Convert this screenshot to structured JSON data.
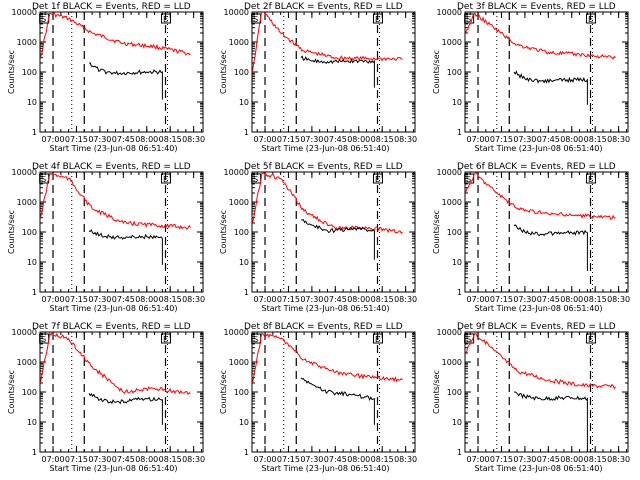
{
  "chart_data": [
    {
      "type": "line",
      "title": "Det 1f BLACK = Events, RED = LLD",
      "xlabel": "Start Time (23-Jun-08 06:51:40)",
      "ylabel": "Counts/sec",
      "yscale": "log",
      "ylim": [
        1,
        10000
      ],
      "xticks": [
        "07:00",
        "07:15",
        "07:30",
        "07:45",
        "08:00",
        "08:15",
        "08:30"
      ],
      "yticks": [
        "1",
        "10",
        "100",
        "1000",
        "10000"
      ],
      "markers": [
        "07:00",
        "07:20",
        "08:12"
      ],
      "markers_dotted": [
        "07:12"
      ],
      "box_label": "S",
      "box2_label": "E",
      "series": [
        {
          "name": "BLACK = Events",
          "color": "#000000",
          "x": [
            "07:23",
            "07:30",
            "07:40",
            "08:00",
            "08:10",
            "08:10",
            "08:10"
          ],
          "y": [
            200,
            110,
            90,
            100,
            100,
            40,
            12
          ]
        },
        {
          "name": "RED = LLD",
          "color": "#ff0000",
          "x": [
            "06:52",
            "06:58",
            "07:10",
            "07:25",
            "07:45",
            "08:05",
            "08:28"
          ],
          "y": [
            300,
            9000,
            6000,
            2000,
            900,
            700,
            400
          ]
        }
      ]
    },
    {
      "type": "line",
      "title": "Det 2f BLACK = Events, RED = LLD",
      "xlabel": "Start Time (23-Jun-08 06:51:40)",
      "ylabel": "Counts/sec",
      "yscale": "log",
      "ylim": [
        1,
        10000
      ],
      "xticks": [
        "07:00",
        "07:15",
        "07:30",
        "07:45",
        "08:00",
        "08:15",
        "08:30"
      ],
      "yticks": [
        "1",
        "10",
        "100",
        "1000",
        "10000"
      ],
      "markers": [
        "07:00",
        "07:20",
        "08:12"
      ],
      "markers_dotted": [
        "07:12"
      ],
      "box_label": "S",
      "box2_label": "E",
      "series": [
        {
          "name": "BLACK = Events",
          "color": "#000000",
          "x": [
            "07:23",
            "07:30",
            "07:40",
            "08:00",
            "08:10",
            "08:10",
            "08:10"
          ],
          "y": [
            300,
            230,
            220,
            230,
            230,
            100,
            30
          ]
        },
        {
          "name": "RED = LLD",
          "color": "#ff0000",
          "x": [
            "06:52",
            "06:58",
            "07:10",
            "07:25",
            "07:45",
            "08:05",
            "08:28"
          ],
          "y": [
            100,
            12000,
            2000,
            500,
            300,
            280,
            270
          ]
        }
      ]
    },
    {
      "type": "line",
      "title": "Det 3f BLACK = Events, RED = LLD",
      "xlabel": "Start Time (23-Jun-08 06:51:40)",
      "ylabel": "Counts/sec",
      "yscale": "log",
      "ylim": [
        1,
        10000
      ],
      "xticks": [
        "07:00",
        "07:15",
        "07:30",
        "07:45",
        "08:00",
        "08:15",
        "08:30"
      ],
      "yticks": [
        "1",
        "10",
        "100",
        "1000",
        "10000"
      ],
      "markers": [
        "07:00",
        "07:20",
        "08:12"
      ],
      "markers_dotted": [
        "07:12"
      ],
      "box_label": "S",
      "box2_label": "E",
      "series": [
        {
          "name": "BLACK = Events",
          "color": "#000000",
          "x": [
            "07:23",
            "07:30",
            "07:40",
            "08:00",
            "08:10",
            "08:10",
            "08:10"
          ],
          "y": [
            100,
            60,
            50,
            55,
            55,
            20,
            8
          ]
        },
        {
          "name": "RED = LLD",
          "color": "#ff0000",
          "x": [
            "06:52",
            "06:58",
            "07:10",
            "07:25",
            "07:45",
            "08:05",
            "08:28"
          ],
          "y": [
            2000,
            9000,
            3000,
            800,
            450,
            380,
            300
          ]
        }
      ]
    },
    {
      "type": "line",
      "title": "Det 4f BLACK = Events, RED = LLD",
      "xlabel": "Start Time (23-Jun-08 06:51:40)",
      "ylabel": "Counts/sec",
      "yscale": "log",
      "ylim": [
        1,
        10000
      ],
      "xticks": [
        "07:00",
        "07:15",
        "07:30",
        "07:45",
        "08:00",
        "08:15",
        "08:30"
      ],
      "yticks": [
        "1",
        "10",
        "100",
        "1000",
        "10000"
      ],
      "markers": [
        "07:00",
        "07:20",
        "08:12"
      ],
      "markers_dotted": [
        "07:12"
      ],
      "box_label": "S",
      "box2_label": "E",
      "series": [
        {
          "name": "BLACK = Events",
          "color": "#000000",
          "x": [
            "07:23",
            "07:30",
            "07:40",
            "08:00",
            "08:10",
            "08:10",
            "08:10"
          ],
          "y": [
            110,
            80,
            65,
            70,
            60,
            25,
            8
          ]
        },
        {
          "name": "RED = LLD",
          "color": "#ff0000",
          "x": [
            "06:52",
            "06:58",
            "07:10",
            "07:25",
            "07:45",
            "08:05",
            "08:28"
          ],
          "y": [
            300,
            9000,
            6000,
            600,
            200,
            170,
            140
          ]
        }
      ]
    },
    {
      "type": "line",
      "title": "Det 5f BLACK = Events, RED = LLD",
      "xlabel": "Start Time (23-Jun-08 06:51:40)",
      "ylabel": "Counts/sec",
      "yscale": "log",
      "ylim": [
        1,
        10000
      ],
      "xticks": [
        "07:00",
        "07:15",
        "07:30",
        "07:45",
        "08:00",
        "08:15",
        "08:30"
      ],
      "yticks": [
        "1",
        "10",
        "100",
        "1000",
        "10000"
      ],
      "markers": [
        "07:00",
        "07:20",
        "08:12"
      ],
      "markers_dotted": [
        "07:12"
      ],
      "box_label": "S",
      "box2_label": "E",
      "series": [
        {
          "name": "BLACK = Events",
          "color": "#000000",
          "x": [
            "07:23",
            "07:30",
            "07:40",
            "08:00",
            "08:10",
            "08:10",
            "08:10"
          ],
          "y": [
            250,
            170,
            110,
            130,
            110,
            40,
            12
          ]
        },
        {
          "name": "RED = LLD",
          "color": "#ff0000",
          "x": [
            "06:52",
            "06:58",
            "07:10",
            "07:25",
            "07:45",
            "08:05",
            "08:28"
          ],
          "y": [
            200,
            9000,
            6000,
            500,
            130,
            140,
            100
          ]
        }
      ]
    },
    {
      "type": "line",
      "title": "Det 6f BLACK = Events, RED = LLD",
      "xlabel": "Start Time (23-Jun-08 06:51:40)",
      "ylabel": "Counts/sec",
      "yscale": "log",
      "ylim": [
        1,
        10000
      ],
      "xticks": [
        "07:00",
        "07:15",
        "07:30",
        "07:45",
        "08:00",
        "08:15",
        "08:30"
      ],
      "yticks": [
        "1",
        "10",
        "100",
        "1000",
        "10000"
      ],
      "markers": [
        "07:00",
        "07:20",
        "08:12"
      ],
      "markers_dotted": [
        "07:12"
      ],
      "box_label": "S",
      "box2_label": "E",
      "series": [
        {
          "name": "BLACK = Events",
          "color": "#000000",
          "x": [
            "07:23",
            "07:30",
            "07:40",
            "08:00",
            "08:10",
            "08:10",
            "08:10"
          ],
          "y": [
            160,
            100,
            85,
            95,
            95,
            30,
            5
          ]
        },
        {
          "name": "RED = LLD",
          "color": "#ff0000",
          "x": [
            "06:52",
            "06:58",
            "07:10",
            "07:25",
            "07:45",
            "08:05",
            "08:28"
          ],
          "y": [
            2000,
            9000,
            2500,
            600,
            400,
            350,
            300
          ]
        }
      ]
    },
    {
      "type": "line",
      "title": "Det 7f BLACK = Events, RED = LLD",
      "xlabel": "Start Time (23-Jun-08 06:51:40)",
      "ylabel": "Counts/sec",
      "yscale": "log",
      "ylim": [
        1,
        10000
      ],
      "xticks": [
        "07:00",
        "07:15",
        "07:30",
        "07:45",
        "08:00",
        "08:15",
        "08:30"
      ],
      "yticks": [
        "1",
        "10",
        "100",
        "1000",
        "10000"
      ],
      "markers": [
        "07:00",
        "07:20",
        "08:12"
      ],
      "markers_dotted": [
        "07:12"
      ],
      "box_label": "S",
      "box2_label": "E",
      "series": [
        {
          "name": "BLACK = Events",
          "color": "#000000",
          "x": [
            "07:23",
            "07:30",
            "07:40",
            "08:00",
            "08:10",
            "08:10",
            "08:10"
          ],
          "y": [
            90,
            55,
            45,
            60,
            55,
            25,
            8
          ]
        },
        {
          "name": "RED = LLD",
          "color": "#ff0000",
          "x": [
            "06:52",
            "06:58",
            "07:10",
            "07:25",
            "07:45",
            "08:05",
            "08:28"
          ],
          "y": [
            200,
            9000,
            6000,
            700,
            100,
            130,
            90
          ]
        }
      ]
    },
    {
      "type": "line",
      "title": "Det 8f BLACK = Events, RED = LLD",
      "xlabel": "Start Time (23-Jun-08 06:51:40)",
      "ylabel": "Counts/sec",
      "yscale": "log",
      "ylim": [
        1,
        10000
      ],
      "xticks": [
        "07:00",
        "07:15",
        "07:30",
        "07:45",
        "08:00",
        "08:15",
        "08:30"
      ],
      "yticks": [
        "1",
        "10",
        "100",
        "1000",
        "10000"
      ],
      "markers": [
        "07:00",
        "07:20",
        "08:12"
      ],
      "markers_dotted": [
        "07:12"
      ],
      "box_label": "S",
      "box2_label": "E",
      "series": [
        {
          "name": "BLACK = Events",
          "color": "#000000",
          "x": [
            "07:23",
            "07:30",
            "07:40",
            "08:00",
            "08:10",
            "08:10",
            "08:10"
          ],
          "y": [
            300,
            180,
            100,
            75,
            60,
            25,
            8
          ]
        },
        {
          "name": "RED = LLD",
          "color": "#ff0000",
          "x": [
            "06:52",
            "06:58",
            "07:10",
            "07:25",
            "07:45",
            "08:05",
            "08:28"
          ],
          "y": [
            200,
            9000,
            6000,
            1200,
            450,
            320,
            250
          ]
        }
      ]
    },
    {
      "type": "line",
      "title": "Det 9f BLACK = Events, RED = LLD",
      "xlabel": "Start Time (23-Jun-08 06:51:40)",
      "ylabel": "Counts/sec",
      "yscale": "log",
      "ylim": [
        1,
        10000
      ],
      "xticks": [
        "07:00",
        "07:15",
        "07:30",
        "07:45",
        "08:00",
        "08:15",
        "08:30"
      ],
      "yticks": [
        "1",
        "10",
        "100",
        "1000",
        "10000"
      ],
      "markers": [
        "07:00",
        "07:20",
        "08:12"
      ],
      "markers_dotted": [
        "07:12"
      ],
      "box_label": "S",
      "box2_label": "E",
      "series": [
        {
          "name": "BLACK = Events",
          "color": "#000000",
          "x": [
            "07:23",
            "07:30",
            "07:40",
            "08:00",
            "08:10",
            "08:10",
            "08:10"
          ],
          "y": [
            100,
            70,
            60,
            65,
            60,
            25,
            1
          ]
        },
        {
          "name": "RED = LLD",
          "color": "#ff0000",
          "x": [
            "06:52",
            "06:58",
            "07:10",
            "07:25",
            "07:45",
            "08:05",
            "08:28"
          ],
          "y": [
            2000,
            9000,
            2500,
            500,
            250,
            170,
            150
          ]
        }
      ]
    }
  ]
}
